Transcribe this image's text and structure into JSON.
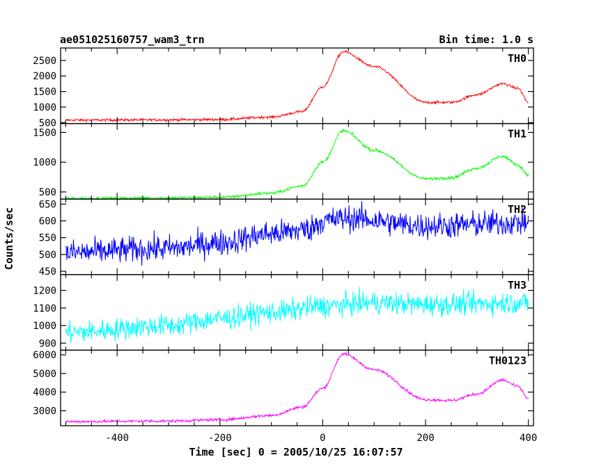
{
  "chart_data": {
    "type": "line",
    "title": "ae051025160757_wam3_trn",
    "bin_time_label": "Bin time: 1.0 s",
    "xlabel": "Time [sec] 0 = 2005/10/25 16:07:57",
    "ylabel": "Counts/sec",
    "xlim": [
      -510,
      410
    ],
    "xticks": [
      -400,
      -200,
      0,
      200,
      400
    ],
    "x_range": [
      -500,
      400
    ],
    "panels": [
      {
        "name": "TH0",
        "color": "#ff0000",
        "ylim": [
          470,
          2900
        ],
        "yticks": [
          500,
          1000,
          1500,
          2000,
          2500
        ],
        "noise": 30,
        "profile": [
          [
            -500,
            580
          ],
          [
            -300,
            590
          ],
          [
            -200,
            600
          ],
          [
            -100,
            680
          ],
          [
            -40,
            850
          ],
          [
            0,
            1650
          ],
          [
            40,
            2780
          ],
          [
            100,
            2300
          ],
          [
            200,
            1150
          ],
          [
            250,
            1150
          ],
          [
            300,
            1400
          ],
          [
            350,
            1750
          ],
          [
            380,
            1600
          ],
          [
            400,
            1150
          ]
        ]
      },
      {
        "name": "TH1",
        "color": "#00ff00",
        "ylim": [
          380,
          1650
        ],
        "yticks": [
          500,
          1000,
          1500
        ],
        "noise": 18,
        "profile": [
          [
            -500,
            390
          ],
          [
            -300,
            400
          ],
          [
            -200,
            410
          ],
          [
            -100,
            480
          ],
          [
            -40,
            600
          ],
          [
            0,
            1000
          ],
          [
            40,
            1530
          ],
          [
            100,
            1200
          ],
          [
            200,
            720
          ],
          [
            250,
            740
          ],
          [
            300,
            900
          ],
          [
            350,
            1100
          ],
          [
            380,
            950
          ],
          [
            400,
            790
          ]
        ]
      },
      {
        "name": "TH2",
        "color": "#0000ff",
        "ylim": [
          440,
          665
        ],
        "yticks": [
          450,
          500,
          550,
          600,
          650
        ],
        "noise": 28,
        "profile": [
          [
            -500,
            505
          ],
          [
            -300,
            518
          ],
          [
            -200,
            535
          ],
          [
            -100,
            562
          ],
          [
            -30,
            575
          ],
          [
            0,
            600
          ],
          [
            50,
            608
          ],
          [
            200,
            585
          ],
          [
            400,
            595
          ]
        ]
      },
      {
        "name": "TH3",
        "color": "#00ffff",
        "ylim": [
          860,
          1290
        ],
        "yticks": [
          900,
          1000,
          1100,
          1200
        ],
        "noise": 45,
        "profile": [
          [
            -500,
            960
          ],
          [
            -300,
            1000
          ],
          [
            -200,
            1040
          ],
          [
            -100,
            1075
          ],
          [
            0,
            1110
          ],
          [
            100,
            1130
          ],
          [
            200,
            1120
          ],
          [
            400,
            1130
          ]
        ]
      },
      {
        "name": "TH0123",
        "color": "#ff00ff",
        "ylim": [
          2200,
          6250
        ],
        "yticks": [
          3000,
          4000,
          5000,
          6000
        ],
        "noise": 55,
        "profile": [
          [
            -500,
            2420
          ],
          [
            -300,
            2450
          ],
          [
            -200,
            2520
          ],
          [
            -100,
            2750
          ],
          [
            -40,
            3200
          ],
          [
            0,
            4200
          ],
          [
            40,
            6050
          ],
          [
            100,
            5200
          ],
          [
            200,
            3600
          ],
          [
            250,
            3550
          ],
          [
            300,
            3900
          ],
          [
            350,
            4650
          ],
          [
            380,
            4300
          ],
          [
            400,
            3650
          ]
        ]
      }
    ]
  }
}
